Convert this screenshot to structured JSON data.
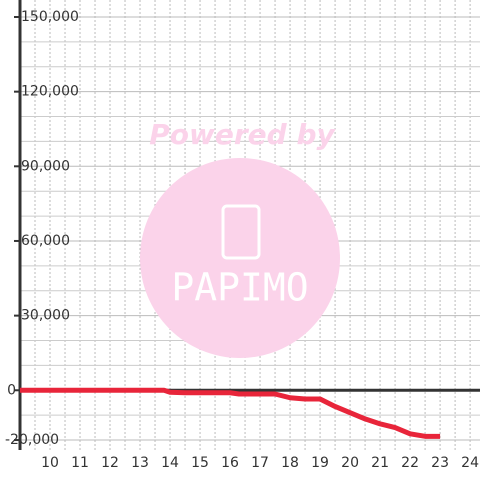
{
  "chart_data": {
    "type": "line",
    "annotations": [
      "Powered by",
      "PAPIMO"
    ],
    "x": [
      9,
      13.8,
      14,
      14.5,
      15,
      16,
      16.3,
      17,
      17.5,
      18,
      18.5,
      19,
      19.5,
      20,
      20.5,
      21,
      21.5,
      22,
      22.5,
      23
    ],
    "series": [
      {
        "color": "#e8253a",
        "values": [
          0,
          0,
          -800,
          -1000,
          -1000,
          -1000,
          -1500,
          -1500,
          -1500,
          -3000,
          -3500,
          -3500,
          -6500,
          -9000,
          -11500,
          -13500,
          -15000,
          -17500,
          -18500,
          -18500
        ]
      }
    ],
    "xlim": [
      9,
      24.33
    ],
    "xticks": [
      10,
      11,
      12,
      13,
      14,
      15,
      16,
      17,
      18,
      19,
      20,
      21,
      22,
      23,
      24
    ],
    "xgrid": [
      9.5,
      10,
      10.5,
      11,
      11.5,
      12,
      12.5,
      13,
      13.5,
      14,
      14.5,
      15,
      15.5,
      16,
      16.5,
      17,
      17.5,
      18,
      18.5,
      19,
      19.5,
      20,
      20.5,
      21,
      21.5,
      22,
      22.5,
      23,
      23.5,
      24
    ],
    "ylim": [
      -24000,
      150000
    ],
    "yticks": [
      {
        "value": -20000,
        "label": "-20,000"
      },
      0,
      {
        "value": 30000,
        "label": "30,000"
      },
      {
        "value": 60000,
        "label": "60,000"
      },
      {
        "value": 90000,
        "label": "90,000"
      },
      {
        "value": 120000,
        "label": "120,000"
      },
      {
        "value": 150000,
        "label": "150,000"
      }
    ],
    "ygrid": [
      -10000,
      10000,
      20000,
      40000,
      50000,
      70000,
      80000,
      100000,
      110000,
      130000,
      140000
    ],
    "grid": true
  }
}
